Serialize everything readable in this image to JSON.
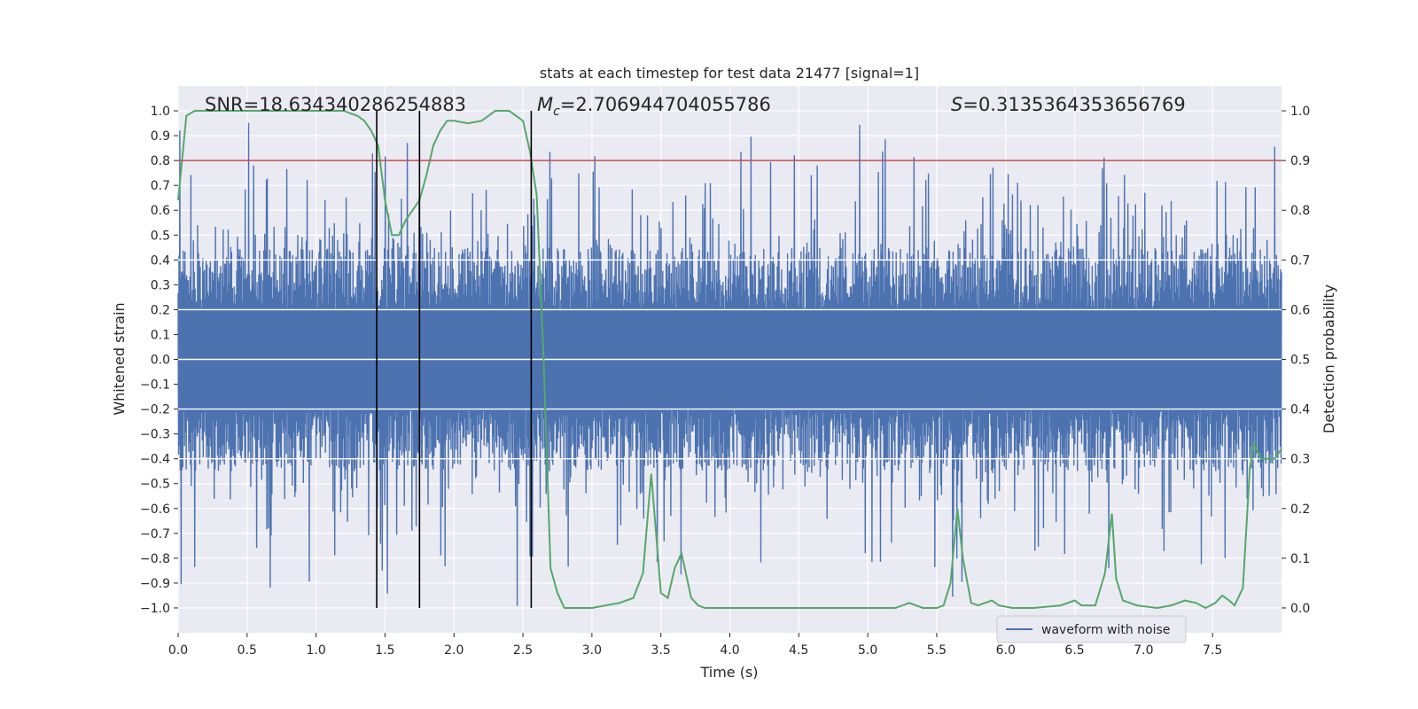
{
  "chart_data": {
    "type": "line",
    "title": "stats at each timestep for test data 21477 [signal=1]",
    "xlabel": "Time (s)",
    "ylabel_left": "Whitened strain",
    "ylabel_right": "Detection probability",
    "xlim": [
      0.0,
      8.0
    ],
    "ylim_left": [
      -1.1,
      1.1
    ],
    "ylim_right": [
      -0.05,
      1.05
    ],
    "xticks": [
      "0.0",
      "0.5",
      "1.0",
      "1.5",
      "2.0",
      "2.5",
      "3.0",
      "3.5",
      "4.0",
      "4.5",
      "5.0",
      "5.5",
      "6.0",
      "6.5",
      "7.0",
      "7.5"
    ],
    "yticks_left": [
      "1.0",
      "0.9",
      "0.8",
      "0.7",
      "0.6",
      "0.5",
      "0.4",
      "0.3",
      "0.2",
      "0.1",
      "0.0",
      "−0.1",
      "−0.2",
      "−0.3",
      "−0.4",
      "−0.5",
      "−0.6",
      "−0.7",
      "−0.8",
      "−0.9",
      "−1.0"
    ],
    "yticks_right": [
      "1.0",
      "0.9",
      "0.8",
      "0.7",
      "0.6",
      "0.5",
      "0.4",
      "0.3",
      "0.2",
      "0.1",
      "0.0"
    ],
    "annotations": {
      "snr": "SNR=18.634340286254883",
      "mc_symbol": "M",
      "mc_sub": "c",
      "mc_value": "=2.706944704055786",
      "s_symbol": "S",
      "s_value": "=0.3135364353656769"
    },
    "threshold": {
      "value": 0.9,
      "axis": "right",
      "color": "#c44e52"
    },
    "vertical_lines": {
      "x": [
        1.44,
        1.75,
        2.56
      ],
      "ymin": -1.0,
      "ymax": 1.0,
      "color": "#000000"
    },
    "legend": {
      "label": "waveform with noise",
      "position": "lower-right"
    },
    "series": [
      {
        "name": "waveform with noise",
        "axis": "left",
        "color": "#4c72b0",
        "style": "dense-noise",
        "x_range": [
          0.0,
          8.0
        ],
        "core_amplitude": 0.2,
        "typical_envelope": 0.45,
        "peak_amplitude_max": 1.0
      },
      {
        "name": "detection probability",
        "axis": "right",
        "color": "#55a868",
        "x": [
          0.0,
          0.06,
          0.12,
          0.2,
          0.4,
          0.6,
          0.8,
          1.0,
          1.1,
          1.2,
          1.25,
          1.3,
          1.35,
          1.4,
          1.45,
          1.5,
          1.55,
          1.6,
          1.65,
          1.7,
          1.75,
          1.8,
          1.85,
          1.9,
          1.95,
          2.0,
          2.1,
          2.2,
          2.25,
          2.3,
          2.35,
          2.4,
          2.45,
          2.5,
          2.55,
          2.6,
          2.65,
          2.7,
          2.75,
          2.8,
          2.9,
          3.0,
          3.1,
          3.2,
          3.3,
          3.37,
          3.43,
          3.5,
          3.55,
          3.6,
          3.65,
          3.72,
          3.77,
          3.82,
          3.9,
          4.1,
          4.3,
          4.5,
          4.7,
          4.9,
          5.0,
          5.2,
          5.3,
          5.4,
          5.5,
          5.55,
          5.6,
          5.65,
          5.69,
          5.75,
          5.8,
          5.85,
          5.9,
          5.95,
          6.05,
          6.2,
          6.4,
          6.5,
          6.55,
          6.65,
          6.72,
          6.77,
          6.8,
          6.85,
          6.95,
          7.1,
          7.2,
          7.3,
          7.38,
          7.45,
          7.52,
          7.57,
          7.62,
          7.66,
          7.72,
          7.77,
          7.8,
          7.85,
          7.9,
          7.95,
          8.0
        ],
        "y": [
          0.82,
          0.99,
          1.0,
          1.0,
          1.0,
          1.0,
          1.0,
          1.0,
          1.0,
          1.0,
          0.995,
          0.99,
          0.98,
          0.96,
          0.93,
          0.82,
          0.75,
          0.75,
          0.78,
          0.8,
          0.82,
          0.87,
          0.93,
          0.96,
          0.98,
          0.98,
          0.975,
          0.98,
          0.99,
          1.0,
          1.0,
          1.0,
          0.99,
          0.98,
          0.92,
          0.83,
          0.5,
          0.08,
          0.03,
          0.0,
          0.0,
          0.0,
          0.005,
          0.01,
          0.02,
          0.07,
          0.27,
          0.03,
          0.02,
          0.08,
          0.11,
          0.02,
          0.005,
          0.0,
          0.0,
          0.0,
          0.0,
          0.0,
          0.0,
          0.0,
          0.0,
          0.0,
          0.01,
          0.0,
          0.0,
          0.005,
          0.05,
          0.2,
          0.1,
          0.01,
          0.005,
          0.01,
          0.015,
          0.005,
          0.0,
          0.0,
          0.005,
          0.015,
          0.005,
          0.005,
          0.07,
          0.19,
          0.06,
          0.015,
          0.005,
          0.0,
          0.005,
          0.015,
          0.01,
          0.0,
          0.01,
          0.025,
          0.015,
          0.005,
          0.04,
          0.28,
          0.33,
          0.3,
          0.3,
          0.3,
          0.32
        ]
      }
    ]
  }
}
